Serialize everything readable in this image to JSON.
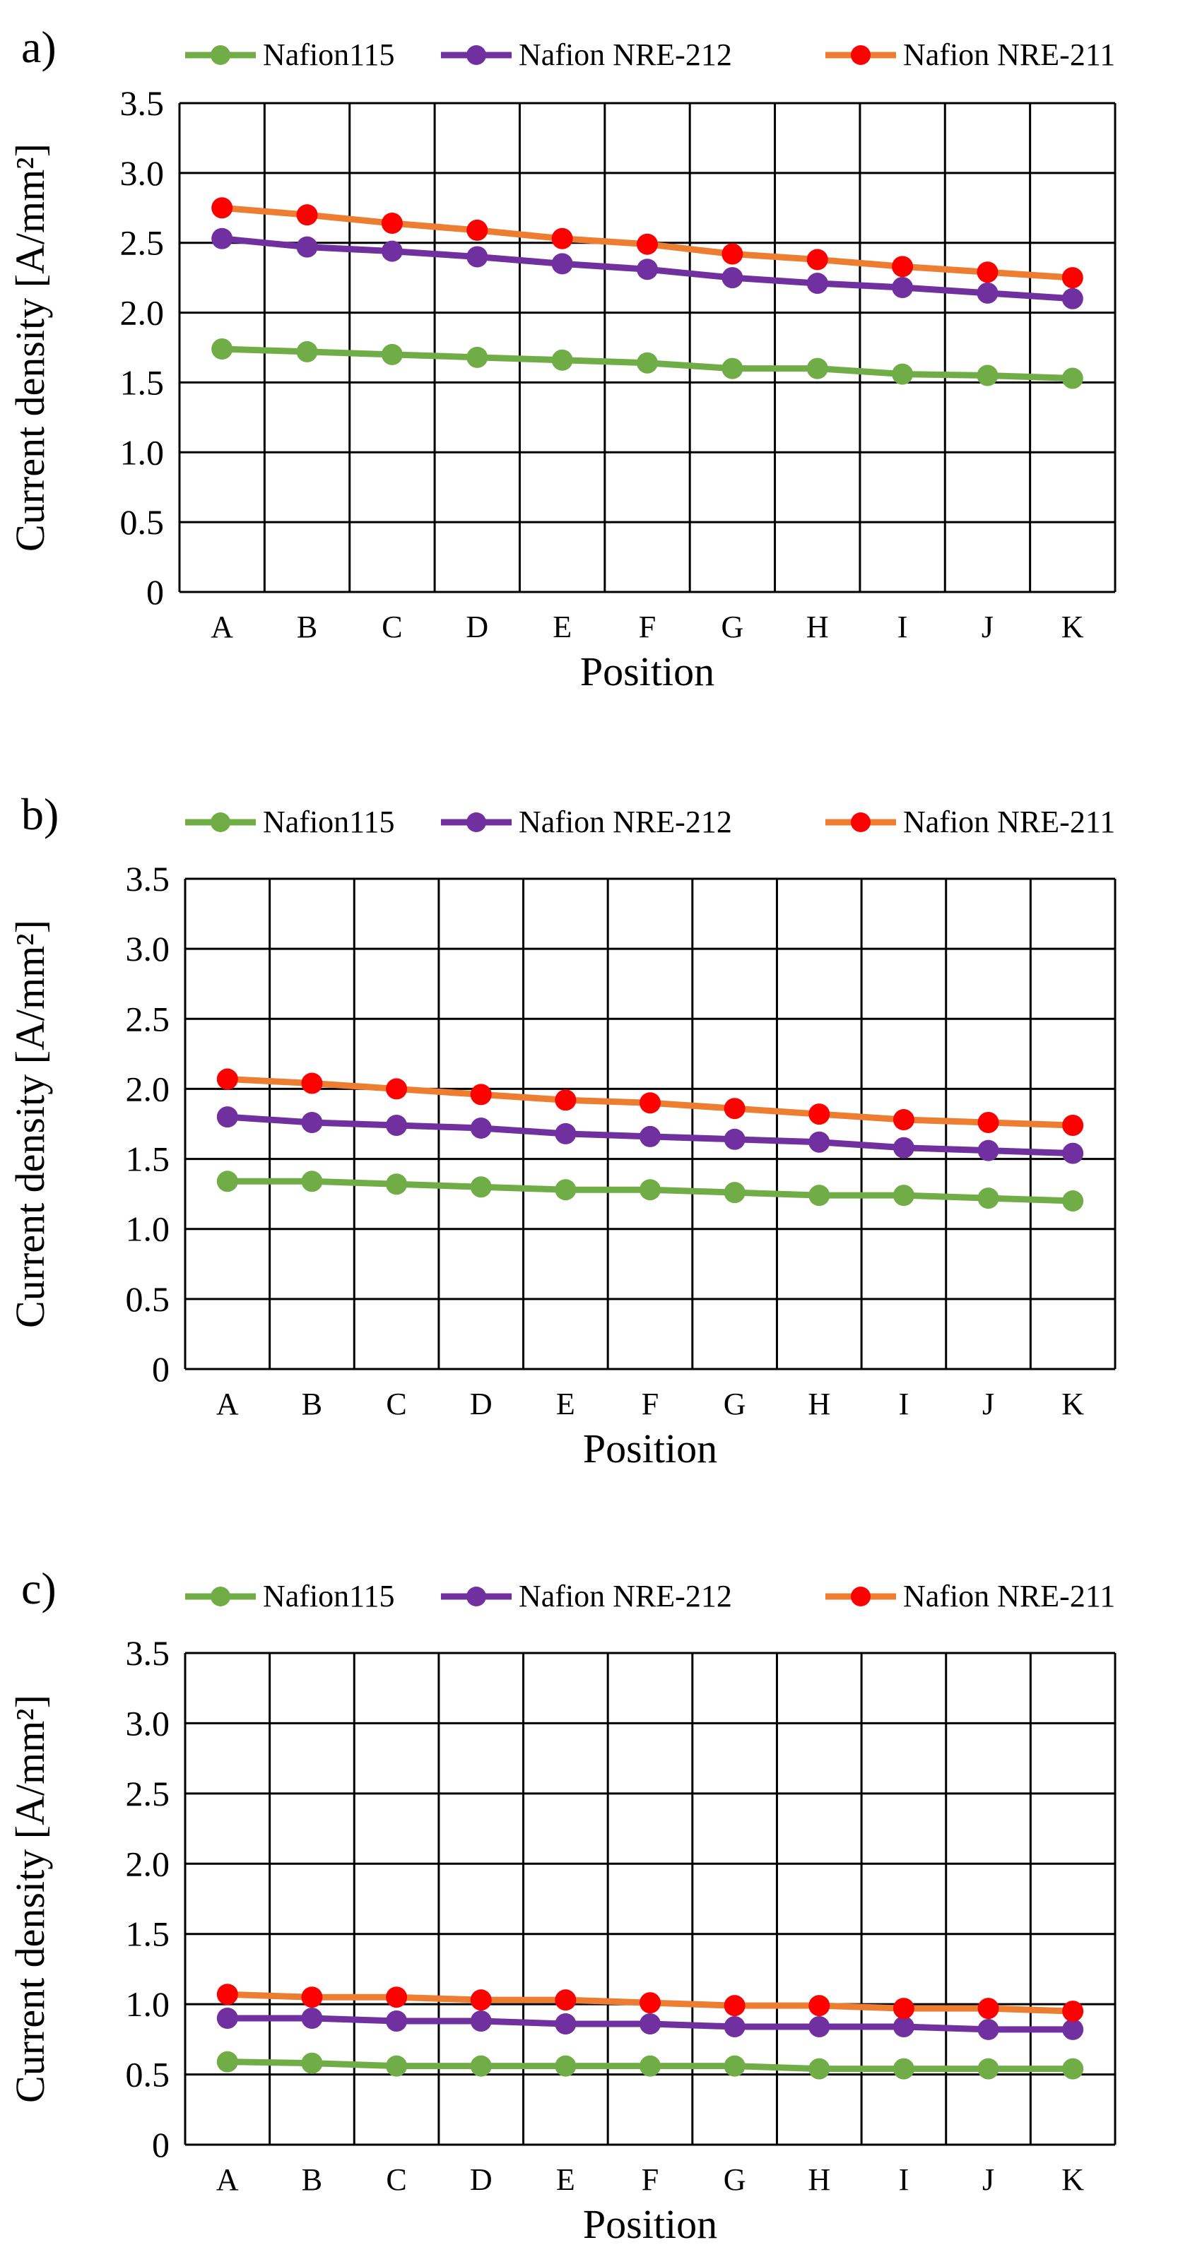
{
  "legend": [
    "Nafion115",
    "Nafion NRE-212",
    "Nafion NRE-211"
  ],
  "colors": {
    "nafion115_line": "#70AD47",
    "nafion115_marker": "#70AD47",
    "nre212_line": "#7030A0",
    "nre212_marker": "#7030A0",
    "nre211_line": "#ED7D31",
    "nre211_marker": "#FF0000",
    "grid": "#000000"
  },
  "chart_data": [
    {
      "panel": "a)",
      "type": "line",
      "xlabel": "Position",
      "ylabel": "Current density [A/mm²]",
      "categories": [
        "A",
        "B",
        "C",
        "D",
        "E",
        "F",
        "G",
        "H",
        "I",
        "J",
        "K"
      ],
      "ylim": [
        0,
        3.5
      ],
      "ytick_labels": [
        "0",
        "0.5",
        "1.0",
        "1.5",
        "2.0",
        "2.5",
        "3.0",
        "3.5"
      ],
      "grid": true,
      "legend_position": "top",
      "series": [
        {
          "name": "Nafion115",
          "values": [
            1.74,
            1.72,
            1.7,
            1.68,
            1.66,
            1.64,
            1.6,
            1.6,
            1.56,
            1.55,
            1.53
          ]
        },
        {
          "name": "Nafion NRE-212",
          "values": [
            2.53,
            2.47,
            2.44,
            2.4,
            2.35,
            2.31,
            2.25,
            2.21,
            2.18,
            2.14,
            2.1
          ]
        },
        {
          "name": "Nafion NRE-211",
          "values": [
            2.75,
            2.7,
            2.64,
            2.59,
            2.53,
            2.49,
            2.42,
            2.38,
            2.33,
            2.29,
            2.25
          ]
        }
      ]
    },
    {
      "panel": "b)",
      "type": "line",
      "xlabel": "Position",
      "ylabel": "Current density [A/mm²]",
      "categories": [
        "A",
        "B",
        "C",
        "D",
        "E",
        "F",
        "G",
        "H",
        "I",
        "J",
        "K"
      ],
      "ylim": [
        0,
        3.5
      ],
      "ytick_labels": [
        "0",
        "0.5",
        "1.0",
        "1.5",
        "2.0",
        "2.5",
        "3.0",
        "3.5"
      ],
      "grid": true,
      "legend_position": "top",
      "series": [
        {
          "name": "Nafion115",
          "values": [
            1.34,
            1.34,
            1.32,
            1.3,
            1.28,
            1.28,
            1.26,
            1.24,
            1.24,
            1.22,
            1.2
          ]
        },
        {
          "name": "Nafion NRE-212",
          "values": [
            1.8,
            1.76,
            1.74,
            1.72,
            1.68,
            1.66,
            1.64,
            1.62,
            1.58,
            1.56,
            1.54
          ]
        },
        {
          "name": "Nafion NRE-211",
          "values": [
            2.07,
            2.04,
            2.0,
            1.96,
            1.92,
            1.9,
            1.86,
            1.82,
            1.78,
            1.76,
            1.74
          ]
        }
      ]
    },
    {
      "panel": "c)",
      "type": "line",
      "xlabel": "Position",
      "ylabel": "Current density [A/mm²]",
      "categories": [
        "A",
        "B",
        "C",
        "D",
        "E",
        "F",
        "G",
        "H",
        "I",
        "J",
        "K"
      ],
      "ylim": [
        0,
        3.5
      ],
      "ytick_labels": [
        "0",
        "0.5",
        "1.0",
        "1.5",
        "2.0",
        "2.5",
        "3.0",
        "3.5"
      ],
      "grid": true,
      "legend_position": "top",
      "series": [
        {
          "name": "Nafion115",
          "values": [
            0.59,
            0.58,
            0.56,
            0.56,
            0.56,
            0.56,
            0.56,
            0.54,
            0.54,
            0.54,
            0.54
          ]
        },
        {
          "name": "Nafion NRE-212",
          "values": [
            0.9,
            0.9,
            0.88,
            0.88,
            0.86,
            0.86,
            0.84,
            0.84,
            0.84,
            0.82,
            0.82
          ]
        },
        {
          "name": "Nafion NRE-211",
          "values": [
            1.07,
            1.05,
            1.05,
            1.03,
            1.03,
            1.01,
            0.99,
            0.99,
            0.97,
            0.97,
            0.95
          ]
        }
      ]
    }
  ]
}
